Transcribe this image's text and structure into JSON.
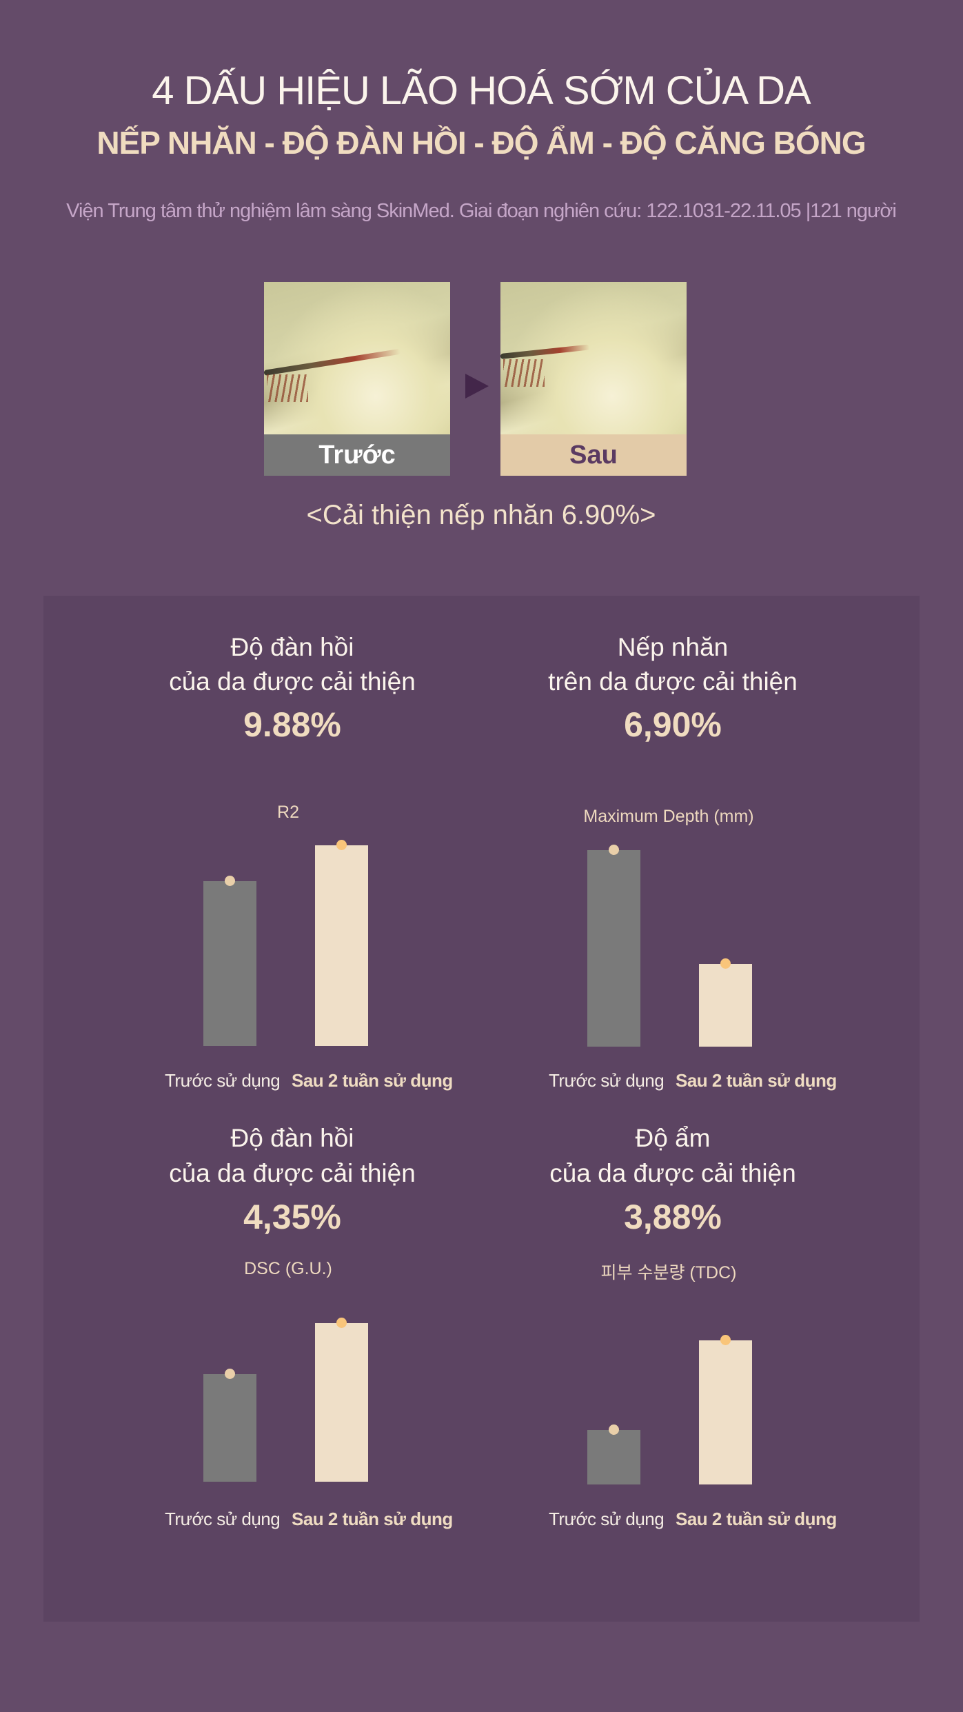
{
  "header": {
    "title": "4 DẤU HIỆU LÃO HOÁ SỚM CỦA DA",
    "subtitle": "NẾP NHĂN - ĐỘ ĐÀN HỒI -  ĐỘ ẨM - ĐỘ CĂNG BÓNG",
    "source": "Viện Trung tâm thử nghiệm lâm sàng SkinMed. Giai đoạn nghiên cứu: 122.1031-22.11.05 |121 người"
  },
  "comparison": {
    "before_label": "Trước",
    "after_label": "Sau",
    "arrow_icon": "play-triangle-icon",
    "caption": "<Cải thiện nếp nhăn 6.90%>"
  },
  "colors": {
    "background": "#644b69",
    "panel": "#5c4462",
    "before_bar": "#7a7a7a",
    "after_bar": "#efdfc8",
    "before_dot": "#e9cfa9",
    "after_dot": "#f9c57a",
    "accent_text": "#f0dcc0"
  },
  "chart_data": [
    {
      "type": "bar",
      "heading_line1": "Độ đàn hồi",
      "heading_line2": "của da được cải thiện",
      "improvement": "9.88%",
      "title": "R2",
      "categories": [
        "Trước sử dụng",
        "Sau 2 tuần sử dụng"
      ],
      "values": [
        82,
        100
      ],
      "ylim": [
        0,
        100
      ]
    },
    {
      "type": "bar",
      "heading_line1": "Nếp nhăn",
      "heading_line2": "trên da được cải thiện",
      "improvement": "6,90%",
      "title": "Maximum Depth (mm)",
      "categories": [
        "Trước sử dụng",
        "Sau 2 tuần sử dụng"
      ],
      "values": [
        100,
        42
      ],
      "ylim": [
        0,
        100
      ]
    },
    {
      "type": "bar",
      "heading_line1": "Độ đàn hồi",
      "heading_line2": "của da được cải thiện",
      "improvement": "4,35%",
      "title": "DSC (G.U.)",
      "categories": [
        "Trước sử dụng",
        "Sau 2 tuần sử dụng"
      ],
      "values": [
        68,
        100
      ],
      "ylim": [
        0,
        100
      ]
    },
    {
      "type": "bar",
      "heading_line1": "Độ ẩm",
      "heading_line2": "của da được cải thiện",
      "improvement": "3,88%",
      "title": "피부 수분량 (TDC)",
      "categories": [
        "Trước sử dụng",
        "Sau 2 tuần sử dụng"
      ],
      "values": [
        38,
        100
      ],
      "ylim": [
        0,
        100
      ]
    }
  ]
}
